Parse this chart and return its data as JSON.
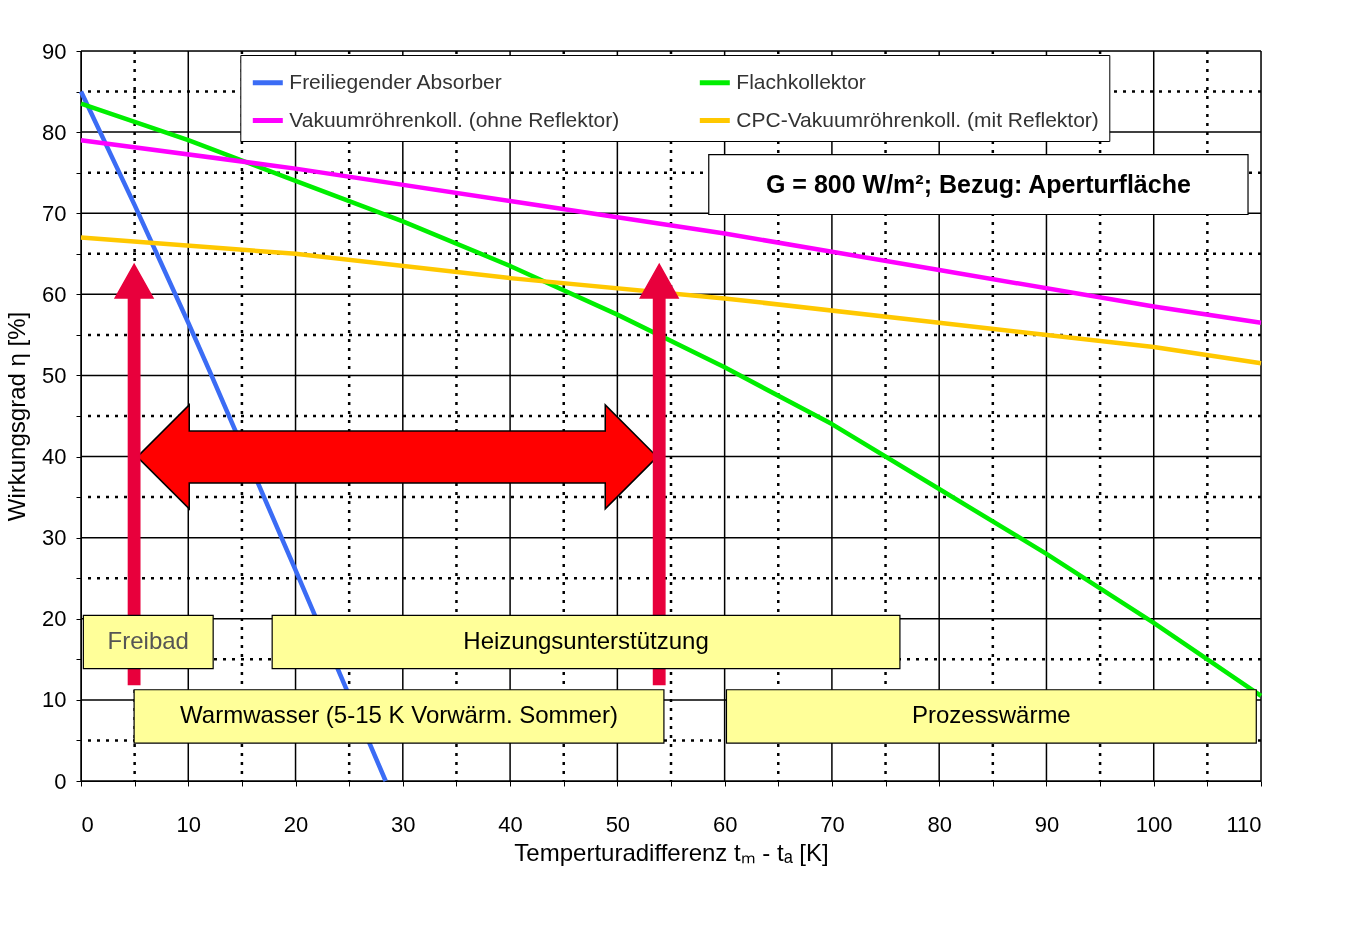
{
  "chart_data": {
    "type": "line",
    "xlabel": "Temperturadifferenz tₘ - tₐ [K]",
    "ylabel": "Wirkungsgrad η [%]",
    "xlim": [
      0,
      110
    ],
    "ylim": [
      0,
      90
    ],
    "xticks": [
      0,
      {
        "value": 5,
        "label": null
      },
      10,
      {
        "value": 15,
        "label": null
      },
      20,
      {
        "value": 25,
        "label": null
      },
      30,
      {
        "value": 35,
        "label": null
      },
      40,
      {
        "value": 45,
        "label": null
      },
      50,
      {
        "value": 55,
        "label": null
      },
      60,
      {
        "value": 65,
        "label": null
      },
      70,
      {
        "value": 75,
        "label": null
      },
      80,
      {
        "value": 85,
        "label": null
      },
      90,
      {
        "value": 95,
        "label": null
      },
      100,
      {
        "value": 105,
        "label": null
      },
      110
    ],
    "yticks": [
      0,
      {
        "value": 5,
        "label": null
      },
      10,
      {
        "value": 15,
        "label": null
      },
      20,
      {
        "value": 25,
        "label": null
      },
      30,
      {
        "value": 35,
        "label": null
      },
      40,
      {
        "value": 45,
        "label": null
      },
      50,
      {
        "value": 55,
        "label": null
      },
      60,
      {
        "value": 65,
        "label": null
      },
      70,
      {
        "value": 75,
        "label": null
      },
      80,
      {
        "value": 85,
        "label": null
      },
      90
    ],
    "grid": true,
    "legend": "top",
    "marker": "none",
    "line_style": "solid",
    "series": [
      {
        "name": "Freiliegender Absorber",
        "color": "#3b6cf5",
        "x": [
          0,
          5,
          10,
          12,
          20,
          28.4
        ],
        "values": [
          85,
          71,
          56.5,
          50.5,
          26,
          0
        ]
      },
      {
        "name": "Flachkollektor",
        "color": "#00ee00",
        "x": [
          0,
          10,
          20,
          30,
          40,
          50,
          60,
          70,
          80,
          90,
          100,
          110
        ],
        "values": [
          83.5,
          79,
          74,
          69,
          63.5,
          57.5,
          51,
          44,
          36,
          28,
          19.5,
          10.5
        ]
      },
      {
        "name": "Vakuumröhrenkoll. (ohne Reflektor)",
        "color": "#ff00ff",
        "x": [
          0,
          20,
          40,
          60,
          80,
          100,
          110
        ],
        "values": [
          79,
          75.5,
          71.5,
          67.5,
          63,
          58.5,
          56.5
        ]
      },
      {
        "name": "CPC-Vakuumröhrenkoll. (mit Reflektor)",
        "color": "#ffc800",
        "x": [
          0,
          20,
          40,
          60,
          80,
          100,
          110
        ],
        "values": [
          67,
          65,
          62,
          59.5,
          56.5,
          53.5,
          51.5
        ]
      }
    ],
    "annotations": [
      "G = 800 W/m²; Bezug: Aperturfläche",
      "Freibad",
      "Heizungsunterstützung",
      "Warmwasser (5-15 K Vorwärm. Sommer)",
      "Prozesswärme"
    ]
  }
}
